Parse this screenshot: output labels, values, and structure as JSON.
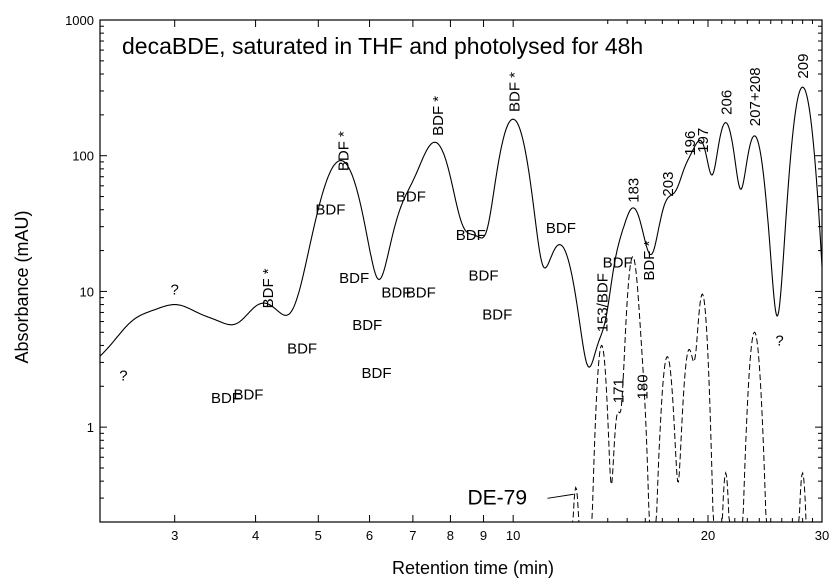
{
  "chart_data": {
    "type": "line",
    "title": "decaBDE, saturated in THF and photolysed for 48h",
    "xlabel": "Retention time (min)",
    "ylabel": "Absorbance (mAU)",
    "x_scale": "log",
    "y_scale": "log",
    "xlim": [
      2.3,
      30
    ],
    "ylim": [
      0.2,
      1000
    ],
    "x_major_ticks": [
      3,
      4,
      5,
      6,
      7,
      8,
      9,
      10,
      20,
      30
    ],
    "x_major_tick_labels": [
      "3",
      "4",
      "5",
      "6",
      "7",
      "8",
      "9",
      "10",
      "20",
      "30"
    ],
    "x_minor_ticks": [
      14,
      15,
      16,
      17,
      18,
      19,
      21,
      22,
      23,
      24,
      25,
      26,
      27,
      28,
      29
    ],
    "y_major_ticks": [
      1,
      10,
      100,
      1000
    ],
    "y_major_tick_labels": [
      "1",
      "10",
      "100",
      "1000"
    ],
    "y_minor_ticks": [
      0.3,
      0.4,
      0.5,
      0.6,
      0.7,
      0.8,
      0.9,
      2,
      3,
      4,
      5,
      6,
      7,
      8,
      9,
      20,
      30,
      40,
      50,
      60,
      70,
      80,
      90,
      200,
      300,
      400,
      500,
      600,
      700,
      800,
      900
    ],
    "baseline": 1.1,
    "series": [
      {
        "style": "solid",
        "peaks": [
          {
            "x": 2.5,
            "y": 1.8,
            "w": 0.05
          },
          {
            "x": 3.0,
            "y": 7.6,
            "w": 0.07
          },
          {
            "x": 3.5,
            "y": 1.2,
            "w": 0.05
          },
          {
            "x": 3.6,
            "y": 1.3,
            "w": 0.04
          },
          {
            "x": 3.9,
            "y": 1.4,
            "w": 0.04
          },
          {
            "x": 4.15,
            "y": 6.5,
            "w": 0.03
          },
          {
            "x": 4.7,
            "y": 2.8,
            "w": 0.03
          },
          {
            "x": 5.2,
            "y": 30,
            "w": 0.025
          },
          {
            "x": 5.45,
            "y": 65,
            "w": 0.022
          },
          {
            "x": 5.7,
            "y": 10,
            "w": 0.02
          },
          {
            "x": 5.95,
            "y": 2.3,
            "w": 0.015
          },
          {
            "x": 6.15,
            "y": 1.8,
            "w": 0.015
          },
          {
            "x": 6.6,
            "y": 8.5,
            "w": 0.02
          },
          {
            "x": 6.9,
            "y": 38,
            "w": 0.02
          },
          {
            "x": 7.2,
            "y": 3.5,
            "w": 0.015
          },
          {
            "x": 7.6,
            "y": 120,
            "w": 0.02
          },
          {
            "x": 8.6,
            "y": 20,
            "w": 0.018
          },
          {
            "x": 8.9,
            "y": 7.3,
            "w": 0.012
          },
          {
            "x": 9.5,
            "y": 4.8,
            "w": 0.012
          },
          {
            "x": 10.0,
            "y": 185,
            "w": 0.018
          },
          {
            "x": 11.8,
            "y": 22,
            "w": 0.018
          },
          {
            "x": 13.7,
            "y": 4.2,
            "w": 0.012
          },
          {
            "x": 14.5,
            "y": 13,
            "w": 0.01
          },
          {
            "x": 15.3,
            "y": 38,
            "w": 0.013
          },
          {
            "x": 16.2,
            "y": 11,
            "w": 0.015
          },
          {
            "x": 17.3,
            "y": 40,
            "w": 0.012
          },
          {
            "x": 18.7,
            "y": 85,
            "w": 0.015
          },
          {
            "x": 19.6,
            "y": 90,
            "w": 0.01
          },
          {
            "x": 21.3,
            "y": 175,
            "w": 0.012
          },
          {
            "x": 23.6,
            "y": 140,
            "w": 0.012
          },
          {
            "x": 25.8,
            "y": 3.2,
            "w": 0.01
          },
          {
            "x": 28.0,
            "y": 320,
            "w": 0.012
          }
        ]
      },
      {
        "name": "DE-79",
        "style": "dashed",
        "peaks": [
          {
            "x": 12.5,
            "y": 0.35,
            "w": 0.004
          },
          {
            "x": 13.7,
            "y": 4.0,
            "w": 0.006
          },
          {
            "x": 14.5,
            "y": 1.2,
            "w": 0.005
          },
          {
            "x": 15.3,
            "y": 18,
            "w": 0.007
          },
          {
            "x": 15.85,
            "y": 1.3,
            "w": 0.005
          },
          {
            "x": 17.3,
            "y": 3.3,
            "w": 0.007
          },
          {
            "x": 18.7,
            "y": 3.7,
            "w": 0.007
          },
          {
            "x": 19.6,
            "y": 9.5,
            "w": 0.006
          },
          {
            "x": 21.3,
            "y": 0.45,
            "w": 0.004
          },
          {
            "x": 23.6,
            "y": 5.0,
            "w": 0.007
          },
          {
            "x": 28.0,
            "y": 0.45,
            "w": 0.004
          }
        ]
      }
    ],
    "annotations": [
      {
        "text": "?",
        "x": 2.5,
        "y": 2.2,
        "rotated": false
      },
      {
        "text": "?",
        "x": 3.0,
        "y": 9.5,
        "rotated": false
      },
      {
        "text": "BDF",
        "x": 3.6,
        "y": 1.5,
        "rotated": false
      },
      {
        "text": "BDF",
        "x": 3.9,
        "y": 1.6,
        "rotated": false
      },
      {
        "text": "BDF *",
        "x": 4.18,
        "y": 7.5,
        "rotated": true
      },
      {
        "text": "BDF",
        "x": 4.72,
        "y": 3.5,
        "rotated": false
      },
      {
        "text": "BDF",
        "x": 5.22,
        "y": 37,
        "rotated": false
      },
      {
        "text": "BDF *",
        "x": 5.47,
        "y": 77,
        "rotated": true
      },
      {
        "text": "BDF",
        "x": 5.68,
        "y": 11.5,
        "rotated": false
      },
      {
        "text": "BDF",
        "x": 5.95,
        "y": 5.2,
        "rotated": false
      },
      {
        "text": "BDF",
        "x": 6.15,
        "y": 2.3,
        "rotated": false
      },
      {
        "text": "BDF",
        "x": 6.6,
        "y": 9.0,
        "rotated": false
      },
      {
        "text": "BDF",
        "x": 6.95,
        "y": 46,
        "rotated": false
      },
      {
        "text": "BDF",
        "x": 7.2,
        "y": 9.0,
        "rotated": false
      },
      {
        "text": "BDF *",
        "x": 7.65,
        "y": 140,
        "rotated": true
      },
      {
        "text": "BDF",
        "x": 8.6,
        "y": 24,
        "rotated": false
      },
      {
        "text": "BDF",
        "x": 9.0,
        "y": 12,
        "rotated": false
      },
      {
        "text": "BDF",
        "x": 9.45,
        "y": 6.2,
        "rotated": false
      },
      {
        "text": "BDF *",
        "x": 10.05,
        "y": 210,
        "rotated": true
      },
      {
        "text": "BDF",
        "x": 11.85,
        "y": 27,
        "rotated": false
      },
      {
        "text": "153/BDF",
        "x": 13.75,
        "y": 5.0,
        "rotated": true
      },
      {
        "text": "171",
        "x": 14.55,
        "y": 1.5,
        "rotated": true
      },
      {
        "text": "BDF",
        "x": 14.5,
        "y": 15,
        "rotated": false
      },
      {
        "text": "183",
        "x": 15.35,
        "y": 45,
        "rotated": true
      },
      {
        "text": "180",
        "x": 15.85,
        "y": 1.6,
        "rotated": true
      },
      {
        "text": "BDF *",
        "x": 16.2,
        "y": 12,
        "rotated": true
      },
      {
        "text": "203",
        "x": 17.35,
        "y": 50,
        "rotated": true
      },
      {
        "text": "196",
        "x": 18.75,
        "y": 100,
        "rotated": true
      },
      {
        "text": "197",
        "x": 19.65,
        "y": 105,
        "rotated": true
      },
      {
        "text": "206",
        "x": 21.35,
        "y": 200,
        "rotated": true
      },
      {
        "text": "207+208",
        "x": 23.65,
        "y": 165,
        "rotated": true
      },
      {
        "text": "?",
        "x": 25.8,
        "y": 4.0,
        "rotated": false
      },
      {
        "text": "209",
        "x": 28.05,
        "y": 370,
        "rotated": true
      }
    ],
    "series_label": {
      "text": "DE-79",
      "x": 8.5,
      "y": 0.27
    }
  }
}
